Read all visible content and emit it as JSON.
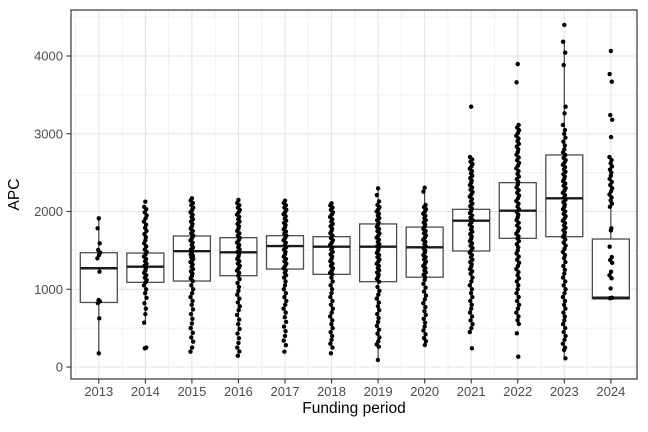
{
  "chart_data": {
    "type": "boxplot",
    "subtype": "boxplot-with-jittered-points",
    "title": "",
    "xlabel": "Funding period",
    "ylabel": "APC",
    "categories": [
      "2013",
      "2014",
      "2015",
      "2016",
      "2017",
      "2018",
      "2019",
      "2020",
      "2021",
      "2022",
      "2023",
      "2024"
    ],
    "y_ticks": [
      0,
      1000,
      2000,
      3000,
      4000
    ],
    "y_minor_ticks": [
      500,
      1500,
      2500,
      3500,
      4500
    ],
    "ylim": [
      -155,
      4590
    ],
    "grid": "major and minor light-gray gridlines on white panel, black panel border, legend none",
    "series": [
      {
        "category": "2013",
        "box": {
          "lower_whisker": 176,
          "q1": 830,
          "median": 1270,
          "q3": 1470,
          "upper_whisker": 1912
        },
        "points": [
          1912,
          1784,
          1591,
          1505,
          1470,
          1440,
          1398,
          1225,
          861,
          844,
          822,
          626,
          176
        ]
      },
      {
        "category": "2014",
        "box": {
          "lower_whisker": 570,
          "q1": 1089,
          "median": 1290,
          "q3": 1466,
          "upper_whisker": 2030
        },
        "points": [
          2126,
          2060,
          2030,
          1990,
          1950,
          1910,
          1870,
          1830,
          1790,
          1750,
          1710,
          1670,
          1630,
          1590,
          1550,
          1510,
          1480,
          1450,
          1420,
          1390,
          1360,
          1330,
          1300,
          1270,
          1240,
          1210,
          1180,
          1150,
          1120,
          1090,
          1050,
          1000,
          950,
          890,
          820,
          750,
          680,
          570,
          250,
          240
        ]
      },
      {
        "category": "2015",
        "box": {
          "lower_whisker": 325,
          "q1": 1106,
          "median": 1490,
          "q3": 1685,
          "upper_whisker": 2110
        },
        "points": [
          2170,
          2140,
          2110,
          2080,
          2050,
          2020,
          1990,
          1960,
          1930,
          1900,
          1870,
          1840,
          1810,
          1780,
          1750,
          1720,
          1690,
          1660,
          1630,
          1600,
          1570,
          1540,
          1510,
          1490,
          1470,
          1450,
          1430,
          1410,
          1390,
          1370,
          1350,
          1320,
          1290,
          1260,
          1230,
          1200,
          1170,
          1140,
          1106,
          1050,
          1000,
          950,
          900,
          850,
          800,
          740,
          680,
          620,
          560,
          500,
          440,
          380,
          325,
          250,
          197
        ]
      },
      {
        "category": "2016",
        "box": {
          "lower_whisker": 450,
          "q1": 1174,
          "median": 1475,
          "q3": 1663,
          "upper_whisker": 2148
        },
        "points": [
          2148,
          2110,
          2080,
          2050,
          2020,
          1990,
          1960,
          1930,
          1900,
          1870,
          1840,
          1810,
          1780,
          1750,
          1720,
          1690,
          1660,
          1630,
          1600,
          1570,
          1540,
          1510,
          1480,
          1450,
          1420,
          1390,
          1360,
          1330,
          1300,
          1270,
          1240,
          1210,
          1174,
          1130,
          1080,
          1030,
          980,
          930,
          880,
          830,
          780,
          730,
          670,
          610,
          550,
          490,
          430,
          370,
          310,
          250,
          200,
          145
        ]
      },
      {
        "category": "2017",
        "box": {
          "lower_whisker": 620,
          "q1": 1260,
          "median": 1556,
          "q3": 1689,
          "upper_whisker": 2139
        },
        "points": [
          2139,
          2110,
          2080,
          2050,
          2022,
          1994,
          1966,
          1938,
          1910,
          1882,
          1854,
          1826,
          1798,
          1770,
          1742,
          1714,
          1689,
          1660,
          1630,
          1600,
          1570,
          1540,
          1510,
          1480,
          1450,
          1420,
          1390,
          1360,
          1330,
          1300,
          1270,
          1240,
          1210,
          1180,
          1150,
          1100,
          1050,
          1000,
          950,
          900,
          850,
          800,
          750,
          700,
          640,
          580,
          520,
          460,
          400,
          340,
          280,
          197
        ]
      },
      {
        "category": "2018",
        "box": {
          "lower_whisker": 470,
          "q1": 1192,
          "median": 1547,
          "q3": 1676,
          "upper_whisker": 2105
        },
        "points": [
          2105,
          2080,
          2050,
          2020,
          1990,
          1960,
          1930,
          1900,
          1870,
          1840,
          1810,
          1780,
          1750,
          1720,
          1690,
          1660,
          1630,
          1600,
          1570,
          1540,
          1510,
          1480,
          1450,
          1420,
          1390,
          1360,
          1330,
          1300,
          1270,
          1240,
          1210,
          1192,
          1150,
          1100,
          1050,
          1000,
          950,
          900,
          850,
          800,
          750,
          700,
          650,
          600,
          550,
          500,
          450,
          400,
          350,
          300,
          250,
          176
        ]
      },
      {
        "category": "2019",
        "box": {
          "lower_whisker": 90,
          "q1": 1097,
          "median": 1547,
          "q3": 1840,
          "upper_whisker": 2298
        },
        "points": [
          2298,
          2212,
          2130,
          2084,
          2056,
          2028,
          2000,
          1972,
          1944,
          1916,
          1888,
          1860,
          1832,
          1804,
          1776,
          1748,
          1720,
          1692,
          1664,
          1636,
          1608,
          1580,
          1552,
          1524,
          1496,
          1468,
          1440,
          1412,
          1384,
          1356,
          1328,
          1300,
          1272,
          1244,
          1216,
          1188,
          1160,
          1132,
          1097,
          1030,
          980,
          930,
          880,
          830,
          780,
          730,
          680,
          630,
          580,
          530,
          480,
          430,
          380,
          330,
          290,
          261,
          90
        ]
      },
      {
        "category": "2020",
        "box": {
          "lower_whisker": 283,
          "q1": 1155,
          "median": 1540,
          "q3": 1800,
          "upper_whisker": 2306
        },
        "points": [
          2306,
          2255,
          2084,
          2056,
          2028,
          2000,
          1972,
          1944,
          1916,
          1888,
          1860,
          1832,
          1804,
          1776,
          1748,
          1720,
          1692,
          1664,
          1636,
          1608,
          1580,
          1552,
          1524,
          1496,
          1468,
          1440,
          1412,
          1384,
          1356,
          1328,
          1300,
          1272,
          1244,
          1216,
          1188,
          1155,
          1120,
          1070,
          1020,
          970,
          920,
          870,
          820,
          770,
          720,
          670,
          620,
          570,
          520,
          470,
          420,
          370,
          330,
          283
        ]
      },
      {
        "category": "2021",
        "box": {
          "lower_whisker": 700,
          "q1": 1492,
          "median": 1882,
          "q3": 2028,
          "upper_whisker": 2700
        },
        "points": [
          3348,
          2700,
          2670,
          2640,
          2610,
          2580,
          2550,
          2520,
          2490,
          2460,
          2430,
          2400,
          2370,
          2340,
          2310,
          2280,
          2250,
          2220,
          2190,
          2160,
          2130,
          2100,
          2070,
          2040,
          2010,
          1980,
          1950,
          1920,
          1890,
          1860,
          1830,
          1800,
          1770,
          1740,
          1710,
          1680,
          1650,
          1620,
          1590,
          1560,
          1530,
          1500,
          1470,
          1440,
          1410,
          1380,
          1350,
          1320,
          1290,
          1260,
          1230,
          1200,
          1150,
          1100,
          1050,
          1000,
          950,
          900,
          850,
          800,
          750,
          700,
          650,
          600,
          550,
          500,
          450,
          240
        ]
      },
      {
        "category": "2022",
        "box": {
          "lower_whisker": 600,
          "q1": 1655,
          "median": 2010,
          "q3": 2371,
          "upper_whisker": 3113
        },
        "points": [
          3897,
          3662,
          3113,
          3080,
          3045,
          3010,
          2975,
          2940,
          2905,
          2870,
          2835,
          2800,
          2765,
          2730,
          2695,
          2660,
          2625,
          2590,
          2555,
          2520,
          2485,
          2450,
          2415,
          2380,
          2345,
          2310,
          2275,
          2240,
          2205,
          2170,
          2135,
          2100,
          2065,
          2030,
          1995,
          1960,
          1925,
          1890,
          1855,
          1820,
          1785,
          1750,
          1715,
          1680,
          1655,
          1620,
          1580,
          1540,
          1500,
          1460,
          1420,
          1380,
          1340,
          1300,
          1260,
          1220,
          1180,
          1140,
          1100,
          1050,
          1000,
          950,
          900,
          850,
          800,
          750,
          700,
          650,
          600,
          553,
          433,
          132
        ]
      },
      {
        "category": "2023",
        "box": {
          "lower_whisker": 112,
          "q1": 1676,
          "median": 2170,
          "q3": 2727,
          "upper_whisker": 4184
        },
        "points": [
          4399,
          4184,
          4043,
          3884,
          3348,
          3263,
          3113,
          3048,
          3000,
          2950,
          2900,
          2850,
          2800,
          2760,
          2727,
          2690,
          2660,
          2630,
          2600,
          2570,
          2540,
          2510,
          2480,
          2450,
          2420,
          2390,
          2360,
          2330,
          2300,
          2270,
          2240,
          2210,
          2180,
          2150,
          2120,
          2090,
          2060,
          2030,
          2000,
          1970,
          1940,
          1910,
          1880,
          1850,
          1820,
          1790,
          1760,
          1730,
          1700,
          1676,
          1640,
          1600,
          1560,
          1520,
          1480,
          1440,
          1400,
          1350,
          1300,
          1250,
          1200,
          1150,
          1100,
          1050,
          1000,
          950,
          900,
          850,
          800,
          750,
          700,
          650,
          600,
          550,
          500,
          450,
          400,
          350,
          300,
          250,
          219,
          112
        ]
      },
      {
        "category": "2024",
        "box": {
          "lower_whisker": 875,
          "q1": 875,
          "median": 891,
          "q3": 1646,
          "upper_whisker": 2662
        },
        "points": [
          4064,
          3768,
          3670,
          3240,
          3180,
          2958,
          2700,
          2662,
          2620,
          2580,
          2540,
          2500,
          2460,
          2420,
          2380,
          2340,
          2300,
          2260,
          2220,
          2180,
          2140,
          2100,
          2060,
          1784,
          1756,
          1547,
          1414,
          1376,
          1340,
          1225,
          1180,
          1141,
          1011,
          891,
          885
        ]
      }
    ]
  },
  "colors": {
    "background": "#ffffff",
    "panel_border": "#333333",
    "grid_major": "#e4e4e4",
    "grid_minor": "#f0f0f0",
    "box_border": "#4d4d4d",
    "box_fill": "#ffffff",
    "median_line": "#1a1a1a",
    "whisker": "#333333",
    "point": "#000000",
    "tick_mark": "#333333",
    "tick_label": "#4d4d4d",
    "axis_title": "#000000"
  }
}
